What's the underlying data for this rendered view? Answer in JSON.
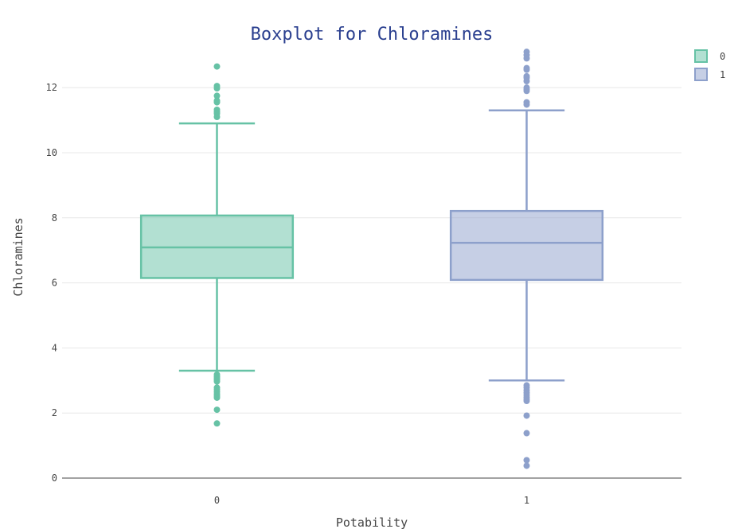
{
  "chart_data": {
    "type": "box",
    "title": "Boxplot for Chloramines",
    "xlabel": "Potability",
    "ylabel": "Chloramines",
    "ylim": [
      0,
      13.3
    ],
    "yticks": [
      0,
      2,
      4,
      6,
      8,
      10,
      12
    ],
    "grid": true,
    "legend_position": "top-right",
    "categories": [
      "0",
      "1"
    ],
    "series": [
      {
        "name": "0",
        "category": "0",
        "color": "#66c2a5",
        "fill": "rgba(102,194,165,0.5)",
        "lower_fence": 3.3,
        "q1": 6.15,
        "median": 7.09,
        "q3": 8.07,
        "upper_fence": 10.9,
        "outliers": [
          12.65,
          12.05,
          11.98,
          11.75,
          11.6,
          11.55,
          11.32,
          11.25,
          11.2,
          11.1,
          3.18,
          3.12,
          3.07,
          3.02,
          2.97,
          2.78,
          2.72,
          2.65,
          2.58,
          2.52,
          2.47,
          2.1,
          1.68
        ]
      },
      {
        "name": "1",
        "category": "1",
        "color": "#8da0cb",
        "fill": "rgba(141,160,203,0.5)",
        "lower_fence": 3.0,
        "q1": 6.09,
        "median": 7.23,
        "q3": 8.21,
        "upper_fence": 11.3,
        "outliers": [
          13.1,
          13.0,
          12.9,
          12.6,
          12.55,
          12.35,
          12.3,
          12.2,
          12.0,
          11.95,
          11.9,
          11.55,
          11.48,
          2.85,
          2.78,
          2.7,
          2.62,
          2.55,
          2.48,
          2.42,
          2.37,
          1.92,
          1.38,
          0.55,
          0.38
        ]
      }
    ]
  }
}
